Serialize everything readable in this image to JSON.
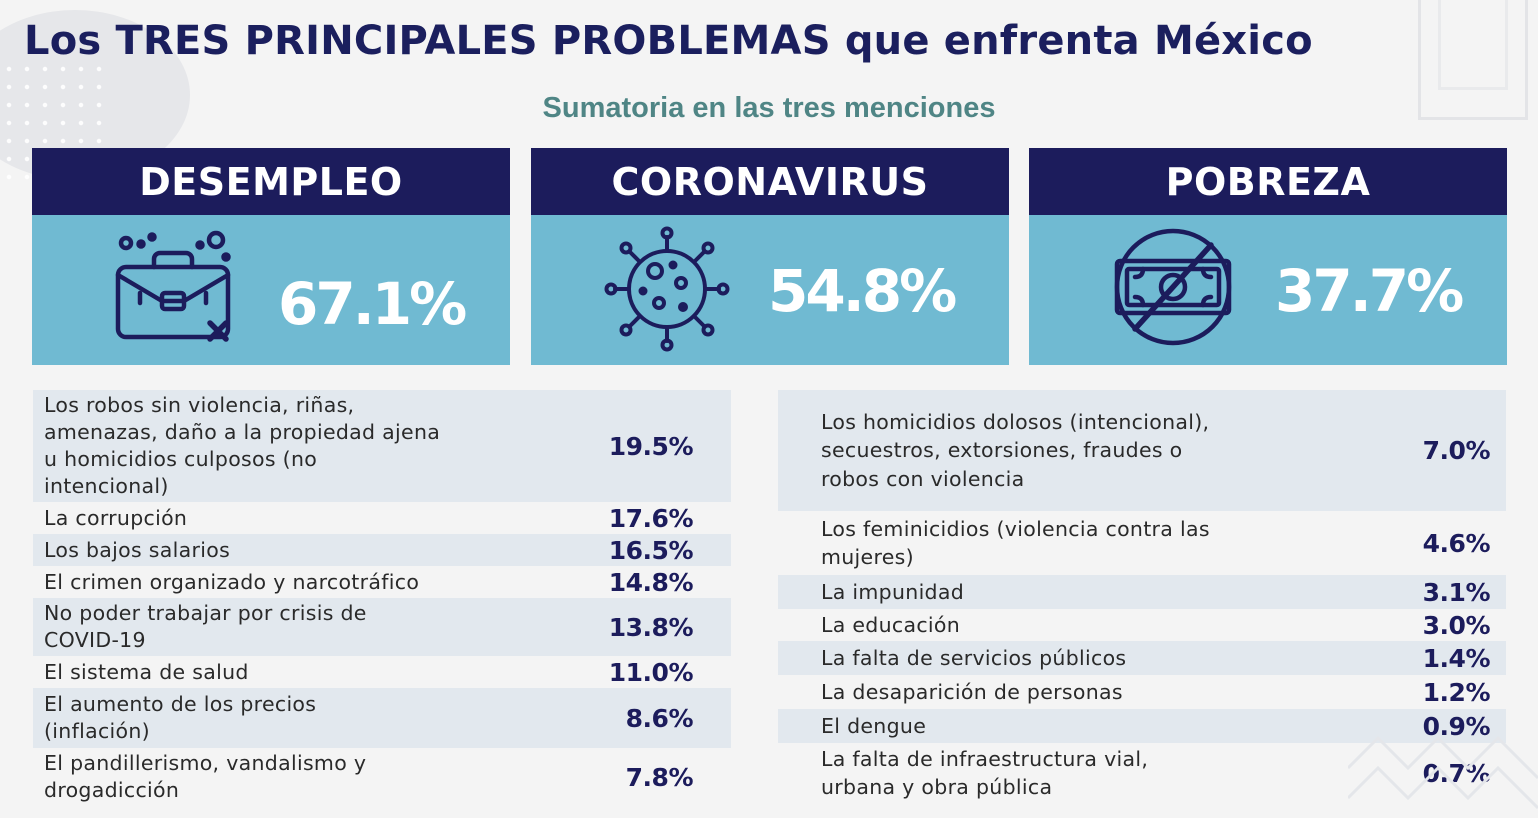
{
  "title": "Los TRES PRINCIPALES PROBLEMAS que enfrenta México",
  "subtitle": "Sumatoria en las tres menciones",
  "colors": {
    "navy": "#1c1c5c",
    "card_blue": "#70bad2",
    "subtitle_teal": "#4f8585",
    "row_shade": "#e2e8ee"
  },
  "cards": [
    {
      "label": "DESEMPLEO",
      "value": "67.1%",
      "icon": "briefcase-icon"
    },
    {
      "label": "CORONAVIRUS",
      "value": "54.8%",
      "icon": "virus-icon"
    },
    {
      "label": "POBREZA",
      "value": "37.7%",
      "icon": "no-money-icon"
    }
  ],
  "chart_data": {
    "type": "table",
    "title": "Los TRES PRINCIPALES PROBLEMAS que enfrenta México",
    "subtitle": "Sumatoria en las tres menciones",
    "unit": "%",
    "top": [
      {
        "label": "DESEMPLEO",
        "value": 67.1
      },
      {
        "label": "CORONAVIRUS",
        "value": 54.8
      },
      {
        "label": "POBREZA",
        "value": 37.7
      }
    ],
    "left_rows": [
      {
        "label": "Los robos sin violencia, riñas, amenazas, daño a la propiedad ajena u homicidios culposos (no intencional)",
        "value": "19.5%"
      },
      {
        "label": "La corrupción",
        "value": "17.6%"
      },
      {
        "label": "Los bajos salarios",
        "value": "16.5%"
      },
      {
        "label": "El crimen organizado y narcotráfico",
        "value": "14.8%"
      },
      {
        "label": "No poder trabajar por crisis de COVID-19",
        "value": "13.8%"
      },
      {
        "label": "El sistema de salud",
        "value": "11.0%"
      },
      {
        "label": "El aumento de los precios (inflación)",
        "value": "8.6%"
      },
      {
        "label": "El pandillerismo, vandalismo y drogadicción",
        "value": "7.8%"
      }
    ],
    "right_rows": [
      {
        "label": "Los homicidios dolosos (intencional), secuestros, extorsiones, fraudes o robos con violencia",
        "value": "7.0%"
      },
      {
        "label": "Los feminicidios (violencia contra las mujeres)",
        "value": "4.6%"
      },
      {
        "label": "La impunidad",
        "value": "3.1%"
      },
      {
        "label": "La educación",
        "value": "3.0%"
      },
      {
        "label": "La falta de servicios públicos",
        "value": "1.4%"
      },
      {
        "label": "La desaparición de personas",
        "value": "1.2%"
      },
      {
        "label": "El dengue",
        "value": "0.9%"
      },
      {
        "label": "La falta de infraestructura vial, urbana y obra pública",
        "value": "0.7%"
      }
    ]
  }
}
